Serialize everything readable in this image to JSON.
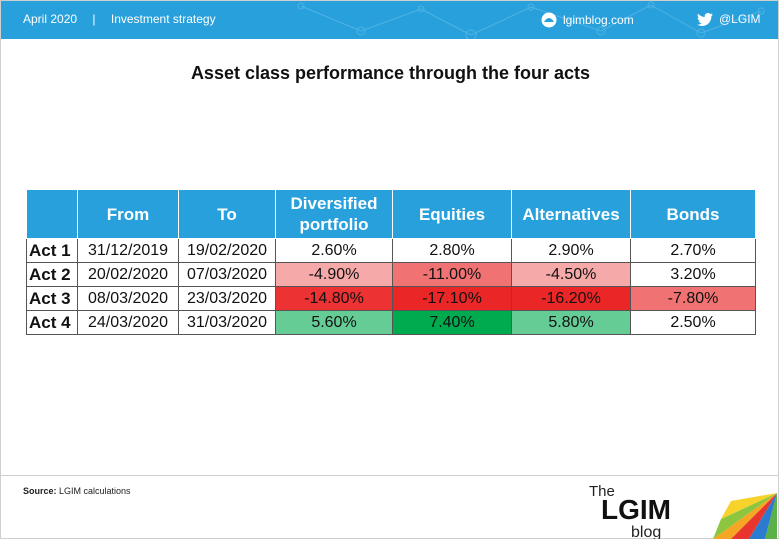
{
  "header": {
    "date": "April 2020",
    "separator": "|",
    "category": "Investment strategy",
    "site": "lgimblog.com",
    "twitter": "@LGIM"
  },
  "title": "Asset class performance through the four acts",
  "table": {
    "columns": [
      "",
      "From",
      "To",
      "Diversified portfolio",
      "Equities",
      "Alternatives",
      "Bonds"
    ],
    "rows": [
      {
        "act": "Act 1",
        "from": "31/12/2019",
        "to": "19/02/2020",
        "diversified": "2.60%",
        "equities": "2.80%",
        "alternatives": "2.90%",
        "bonds": "2.70%"
      },
      {
        "act": "Act 2",
        "from": "20/02/2020",
        "to": "07/03/2020",
        "diversified": "-4.90%",
        "equities": "-11.00%",
        "alternatives": "-4.50%",
        "bonds": "3.20%"
      },
      {
        "act": "Act 3",
        "from": "08/03/2020",
        "to": "23/03/2020",
        "diversified": "-14.80%",
        "equities": "-17.10%",
        "alternatives": "-16.20%",
        "bonds": "-7.80%"
      },
      {
        "act": "Act 4",
        "from": "24/03/2020",
        "to": "31/03/2020",
        "diversified": "5.60%",
        "equities": "7.40%",
        "alternatives": "5.80%",
        "bonds": "2.50%"
      }
    ]
  },
  "source": {
    "label": "Source:",
    "text": "LGIM calculations"
  },
  "logo": {
    "the": "The",
    "lgim": "LGIM",
    "blog": "blog"
  },
  "colors": {
    "header_blue": "#28a0dc",
    "light_red": "#f5a9a9",
    "mid_red": "#f07272",
    "red": "#ea2626",
    "light_green": "#66cc96",
    "green": "#00aa4e"
  }
}
